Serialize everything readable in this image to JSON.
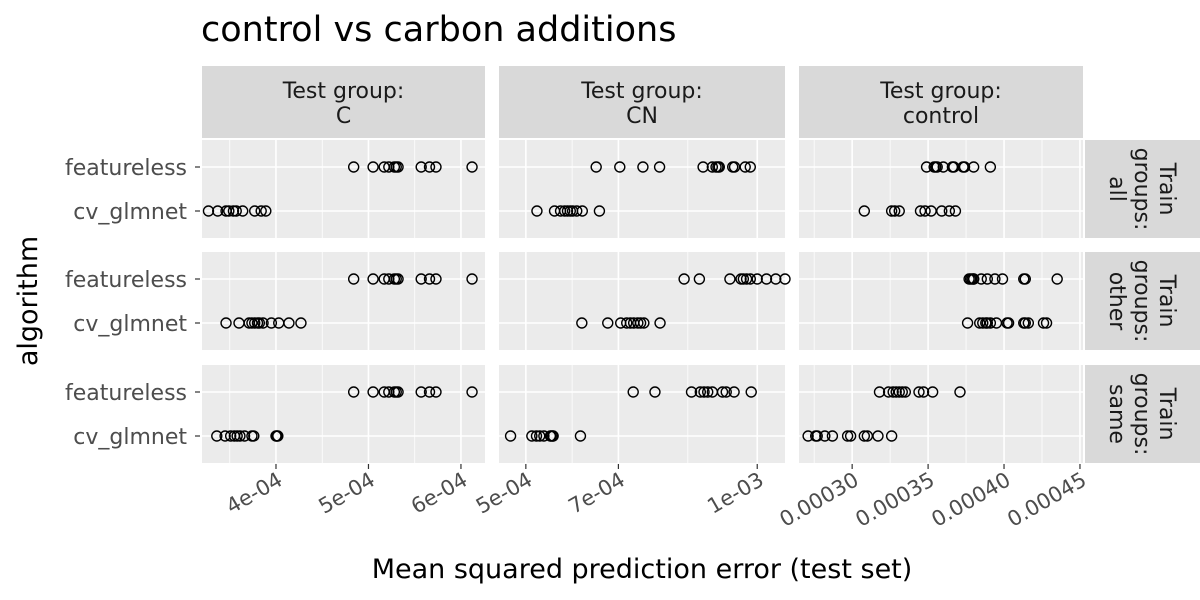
{
  "chart_data": {
    "type": "scatter",
    "title": "control vs carbon additions",
    "xlabel": "Mean squared prediction error (test set)",
    "ylabel": "algorithm",
    "categories": [
      "featureless",
      "cv_glmnet"
    ],
    "grid": true,
    "point_style": "open-circle",
    "columns": [
      {
        "strip": [
          "Test group:",
          "C"
        ],
        "xlim": [
          0.00032,
          0.000626
        ],
        "ticks": [
          0.0004,
          0.0005,
          0.0006
        ],
        "tick_labels": [
          "4e-04",
          "5e-04",
          "6e-04"
        ]
      },
      {
        "strip": [
          "Test group:",
          "CN"
        ],
        "xlim": [
          0.000442,
          0.00106
        ],
        "ticks": [
          0.0005,
          0.0007,
          0.001
        ],
        "tick_labels": [
          "5e-04",
          "7e-04",
          "1e-03"
        ]
      },
      {
        "strip": [
          "Test group:",
          "control"
        ],
        "xlim": [
          0.000265,
          0.000452
        ],
        "ticks": [
          0.0003,
          0.00035,
          0.0004,
          0.00045
        ],
        "tick_labels": [
          "0.00030",
          "0.00035",
          "0.00040",
          "0.00045"
        ]
      }
    ],
    "rows": [
      {
        "strip": [
          "Train",
          "groups:",
          "all"
        ]
      },
      {
        "strip": [
          "Train",
          "groups:",
          "other"
        ]
      },
      {
        "strip": [
          "Train",
          "groups:",
          "same"
        ]
      }
    ],
    "panels": [
      [
        {
          "featureless": [
            0.000484,
            0.000505,
            0.000517,
            0.000522,
            0.000528,
            0.00053,
            0.000532,
            0.000557,
            0.000566,
            0.000573,
            0.000612
          ],
          "cv_glmnet": [
            0.000327,
            0.000337,
            0.000346,
            0.000349,
            0.000354,
            0.000357,
            0.000364,
            0.000377,
            0.000384,
            0.000389
          ]
        },
        {
          "featureless": [
            0.000652,
            0.000703,
            0.000753,
            0.000789,
            0.000883,
            0.000903,
            0.000911,
            0.000915,
            0.000918,
            0.000947,
            0.000951,
            0.000974,
            0.000985
          ],
          "cv_glmnet": [
            0.000524,
            0.000562,
            0.000575,
            0.000584,
            0.00059,
            0.000596,
            0.000601,
            0.00061,
            0.000622,
            0.000659
          ]
        },
        {
          "featureless": [
            0.000349,
            0.000354,
            0.000355,
            0.000356,
            0.00036,
            0.000366,
            0.000367,
            0.000374,
            0.000373,
            0.00038,
            0.000391
          ]
        },
        {
          "cv_glmnet": [
            0.000308,
            0.000326,
            0.000328,
            0.000331,
            0.000345,
            0.000348,
            0.000352,
            0.000359,
            0.000364,
            0.000368
          ]
        }
      ]
    ]
  }
}
